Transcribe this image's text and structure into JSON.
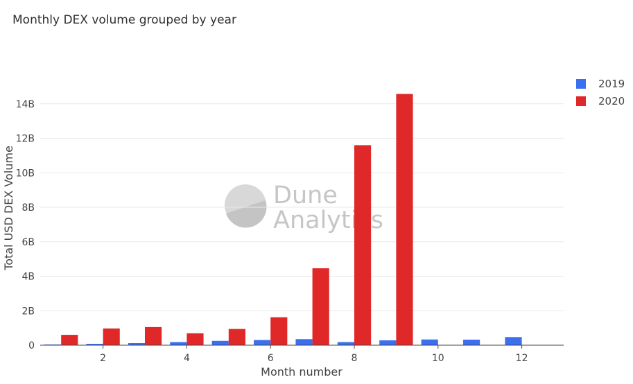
{
  "title": "Monthly DEX volume grouped by year",
  "watermark": {
    "line1": "Dune",
    "line2": "Analytics"
  },
  "colors": {
    "2019": "#3a6ff0",
    "2020": "#e02828",
    "grid": "#e9e9e9",
    "axis": "#444444"
  },
  "chart_data": {
    "type": "bar",
    "title": "Monthly DEX volume grouped by year",
    "xlabel": "Month number",
    "ylabel": "Total USD DEX Volume",
    "x": [
      1,
      2,
      3,
      4,
      5,
      6,
      7,
      8,
      9,
      10,
      11,
      12
    ],
    "xlim": [
      0.5,
      13.0
    ],
    "x_ticks": [
      2,
      4,
      6,
      8,
      10,
      12
    ],
    "ylim": [
      0,
      16000000000
    ],
    "y_ticks": [
      0,
      2000000000,
      4000000000,
      6000000000,
      8000000000,
      10000000000,
      12000000000,
      14000000000
    ],
    "y_tick_labels": [
      "0",
      "2B",
      "4B",
      "6B",
      "8B",
      "10B",
      "12B",
      "14B"
    ],
    "grid": true,
    "legend_position": "top-right",
    "series": [
      {
        "name": "2019",
        "color": "#3a6ff0",
        "values": [
          40000000,
          80000000,
          120000000,
          180000000,
          250000000,
          300000000,
          350000000,
          180000000,
          280000000,
          330000000,
          320000000,
          470000000
        ]
      },
      {
        "name": "2020",
        "color": "#e02828",
        "values": [
          600000000,
          970000000,
          1050000000,
          690000000,
          940000000,
          1620000000,
          4460000000,
          11600000000,
          14570000000,
          null,
          null,
          null
        ]
      }
    ]
  }
}
